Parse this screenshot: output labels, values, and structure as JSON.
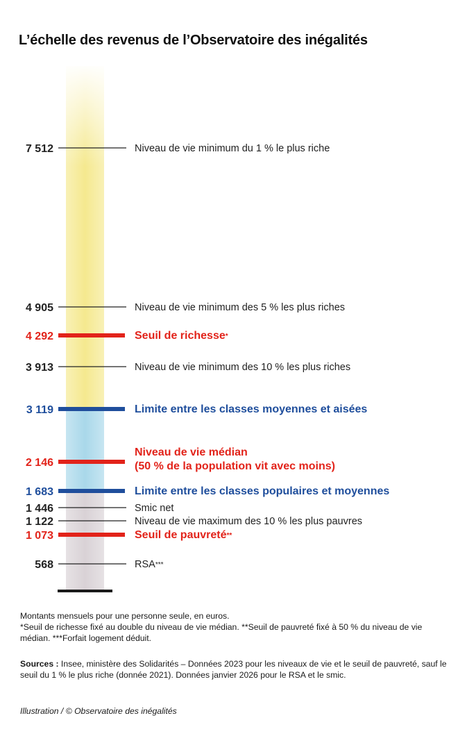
{
  "title": "L’échelle des revenus de l’Observatoire des inégalités",
  "chart_data": {
    "type": "scale",
    "unit": "euros par mois",
    "bands": [
      {
        "from": 0,
        "to": 1683,
        "color": "#d9d2d6"
      },
      {
        "from": 1683,
        "to": 3119,
        "color": "#a9d8ea"
      },
      {
        "from": 3119,
        "to": 9000,
        "color": "#f5e98f"
      }
    ],
    "levels": [
      {
        "value": 7512,
        "value_label": "7 512",
        "label": "Niveau de vie minimum du 1 % le plus riche",
        "style": "thin"
      },
      {
        "value": 4905,
        "value_label": "4 905",
        "label": "Niveau de vie minimum des 5 % les plus riches",
        "style": "thin"
      },
      {
        "value": 4292,
        "value_label": "4 292",
        "label": "Seuil de richesse",
        "suffix": "*",
        "style": "red"
      },
      {
        "value": 3913,
        "value_label": "3 913",
        "label": "Niveau de vie minimum des 10 % les plus riches",
        "style": "thin"
      },
      {
        "value": 3119,
        "value_label": "3 119",
        "label": "Limite entre les classes moyennes et aisées",
        "style": "blue"
      },
      {
        "value": 2146,
        "value_label": "2 146",
        "label": "Niveau de vie médian",
        "label2": "(50 % de la population vit avec moins)",
        "style": "red"
      },
      {
        "value": 1683,
        "value_label": "1 683",
        "label": "Limite entre les classes populaires et moyennes",
        "style": "blue"
      },
      {
        "value": 1446,
        "value_label": "1 446",
        "label": "Smic net",
        "style": "thin"
      },
      {
        "value": 1122,
        "value_label": "1 122",
        "label": "Niveau de vie maximum des 10 % les plus pauvres",
        "style": "thin"
      },
      {
        "value": 1073,
        "value_label": "1 073",
        "label": "Seuil de pauvreté",
        "suffix": "**",
        "style": "red"
      },
      {
        "value": 568,
        "value_label": "568",
        "label": "RSA",
        "suffix": "***",
        "style": "thin"
      }
    ],
    "colors": {
      "red": "#e2231a",
      "blue": "#1f4e9c",
      "thin": "#222222"
    }
  },
  "notes": {
    "line1": "Montants mensuels pour une personne seule, en euros.",
    "line2": "*Seuil de richesse fixé au double du niveau de vie médian. **Seuil de pauvreté fixé à 50 % du niveau de vie médian.  ***Forfait logement déduit."
  },
  "sources": {
    "label": "Sources :",
    "text": " Insee, ministère des Solidarités – Données 2023 pour les niveaux de vie et le seuil de pauvreté, sauf le seuil du 1 % le plus riche (donnée 2021). Données janvier 2026 pour le RSA et le smic."
  },
  "credit": "Illustration / © Observatoire des inégalités"
}
